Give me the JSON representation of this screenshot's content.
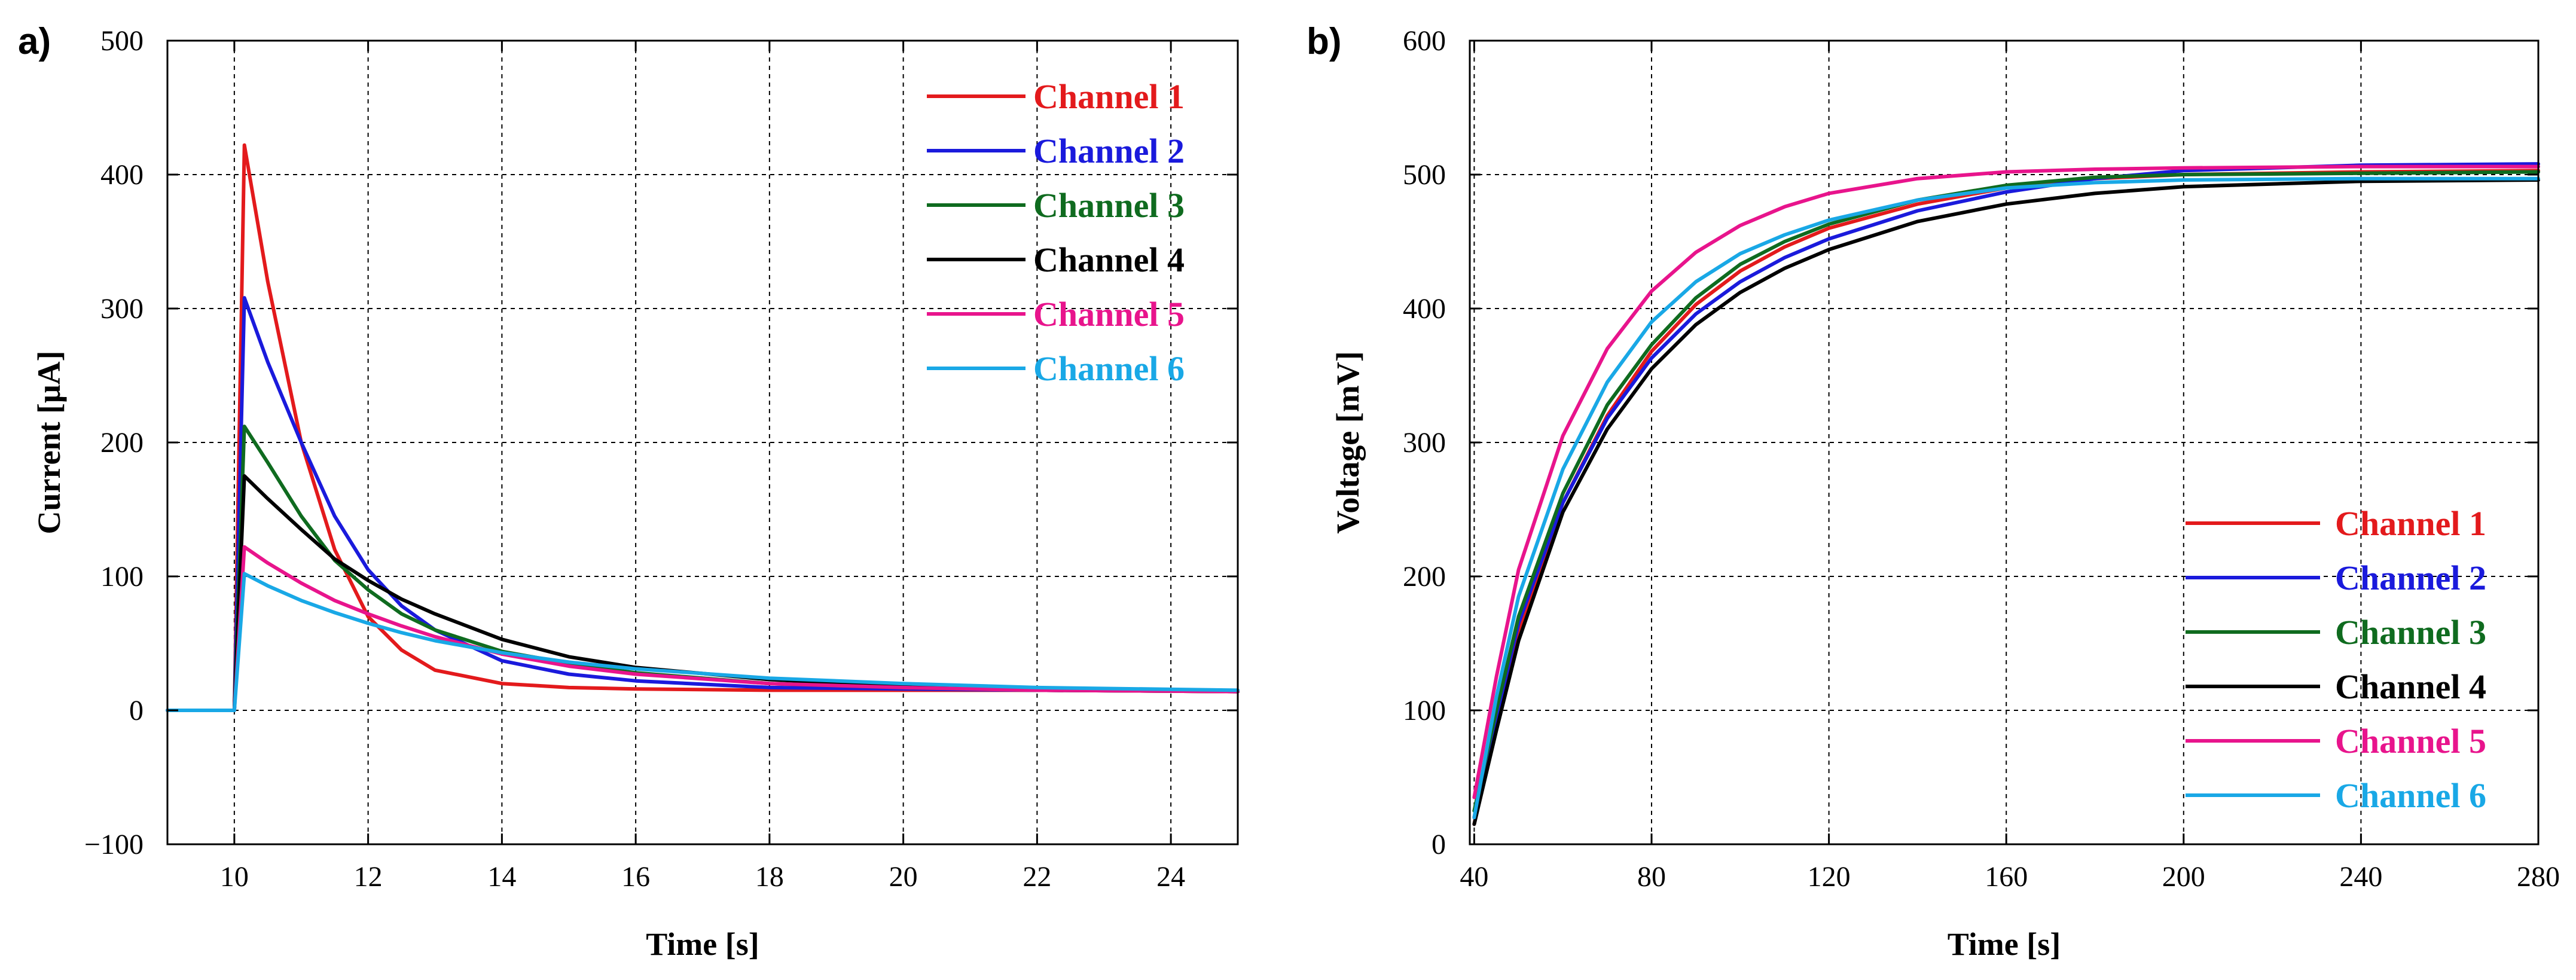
{
  "chart_data": [
    {
      "type": "line",
      "panel_label": "a)",
      "xlabel": "Time [s]",
      "ylabel": "Current [μA]",
      "xlim": [
        9,
        25
      ],
      "ylim": [
        -100,
        500
      ],
      "xticks": [
        10,
        12,
        14,
        16,
        18,
        20,
        22,
        24
      ],
      "yticks": [
        -100,
        0,
        100,
        200,
        300,
        400,
        500
      ],
      "xtick_labels": [
        "10",
        "12",
        "14",
        "16",
        "18",
        "20",
        "22",
        "24"
      ],
      "ytick_labels": [
        "−100",
        "0",
        "100",
        "200",
        "300",
        "400",
        "500"
      ],
      "legend_position": "top-right",
      "grid": true,
      "series": [
        {
          "name": "Channel 1",
          "color": "#e31a1c",
          "x": [
            9,
            10,
            10.15,
            10.5,
            11,
            11.5,
            12,
            12.5,
            13,
            14,
            15,
            16,
            18,
            20,
            22,
            25
          ],
          "y": [
            0,
            0,
            422,
            320,
            200,
            120,
            70,
            45,
            30,
            20,
            17,
            16,
            15,
            15,
            15,
            14
          ]
        },
        {
          "name": "Channel 2",
          "color": "#1a1adc",
          "x": [
            9,
            10,
            10.15,
            10.5,
            11,
            11.5,
            12,
            12.5,
            13,
            14,
            15,
            16,
            18,
            20,
            22,
            25
          ],
          "y": [
            0,
            0,
            308,
            260,
            200,
            145,
            105,
            78,
            60,
            37,
            27,
            22,
            17,
            16,
            15,
            14
          ]
        },
        {
          "name": "Channel 3",
          "color": "#0f6b1f",
          "x": [
            9,
            10,
            10.15,
            10.5,
            11,
            11.5,
            12,
            12.5,
            13,
            14,
            15,
            16,
            18,
            20,
            22,
            25
          ],
          "y": [
            0,
            0,
            212,
            185,
            145,
            112,
            90,
            72,
            60,
            44,
            35,
            28,
            20,
            17,
            15,
            14
          ]
        },
        {
          "name": "Channel 4",
          "color": "#000000",
          "x": [
            9,
            10,
            10.15,
            10.5,
            11,
            11.5,
            12,
            12.5,
            13,
            14,
            15,
            16,
            18,
            20,
            22,
            25
          ],
          "y": [
            0,
            0,
            175,
            158,
            135,
            113,
            97,
            83,
            72,
            53,
            40,
            32,
            23,
            18,
            16,
            14
          ]
        },
        {
          "name": "Channel 5",
          "color": "#e8148c",
          "x": [
            9,
            10,
            10.15,
            10.5,
            11,
            11.5,
            12,
            12.5,
            13,
            14,
            15,
            16,
            18,
            20,
            22,
            25
          ],
          "y": [
            0,
            0,
            122,
            110,
            95,
            82,
            72,
            63,
            55,
            42,
            33,
            27,
            20,
            17,
            15,
            14
          ]
        },
        {
          "name": "Channel 6",
          "color": "#19a8e6",
          "x": [
            9,
            10,
            10.15,
            10.5,
            11,
            11.5,
            12,
            12.5,
            13,
            14,
            15,
            16,
            18,
            20,
            22,
            25
          ],
          "y": [
            0,
            0,
            102,
            93,
            82,
            73,
            65,
            58,
            52,
            43,
            36,
            31,
            24,
            20,
            17,
            15
          ]
        }
      ]
    },
    {
      "type": "line",
      "panel_label": "b)",
      "xlabel": "Time [s]",
      "ylabel": "Voltage [mV]",
      "xlim": [
        39,
        280
      ],
      "ylim": [
        0,
        600
      ],
      "xticks": [
        40,
        80,
        120,
        160,
        200,
        240,
        280
      ],
      "yticks": [
        0,
        100,
        200,
        300,
        400,
        500,
        600
      ],
      "xtick_labels": [
        "40",
        "80",
        "120",
        "160",
        "200",
        "240",
        "280"
      ],
      "ytick_labels": [
        "0",
        "100",
        "200",
        "300",
        "400",
        "500",
        "600"
      ],
      "legend_position": "bottom-right",
      "grid": true,
      "series": [
        {
          "name": "Channel 1",
          "color": "#e31a1c",
          "x": [
            40,
            45,
            50,
            60,
            70,
            80,
            90,
            100,
            110,
            120,
            140,
            160,
            180,
            200,
            240,
            280
          ],
          "y": [
            15,
            90,
            160,
            255,
            320,
            368,
            403,
            428,
            446,
            460,
            478,
            490,
            497,
            500,
            502,
            503
          ]
        },
        {
          "name": "Channel 2",
          "color": "#1a1adc",
          "x": [
            40,
            45,
            50,
            60,
            70,
            80,
            90,
            100,
            110,
            120,
            140,
            160,
            180,
            200,
            240,
            280
          ],
          "y": [
            20,
            95,
            165,
            255,
            318,
            363,
            396,
            420,
            438,
            452,
            473,
            487,
            497,
            503,
            507,
            508
          ]
        },
        {
          "name": "Channel 3",
          "color": "#0f6b1f",
          "x": [
            40,
            45,
            50,
            60,
            70,
            80,
            90,
            100,
            110,
            120,
            140,
            160,
            180,
            200,
            240,
            280
          ],
          "y": [
            25,
            100,
            170,
            262,
            328,
            373,
            408,
            433,
            450,
            463,
            481,
            492,
            498,
            500,
            501,
            502
          ]
        },
        {
          "name": "Channel 4",
          "color": "#000000",
          "x": [
            40,
            45,
            50,
            60,
            70,
            80,
            90,
            100,
            110,
            120,
            140,
            160,
            180,
            200,
            240,
            280
          ],
          "y": [
            15,
            85,
            152,
            248,
            310,
            355,
            388,
            412,
            430,
            444,
            465,
            478,
            486,
            491,
            495,
            496
          ]
        },
        {
          "name": "Channel 5",
          "color": "#e8148c",
          "x": [
            40,
            45,
            50,
            60,
            70,
            80,
            90,
            100,
            110,
            120,
            140,
            160,
            180,
            200,
            240,
            280
          ],
          "y": [
            35,
            125,
            205,
            305,
            370,
            413,
            442,
            462,
            476,
            486,
            497,
            502,
            504,
            505,
            506,
            506
          ]
        },
        {
          "name": "Channel 6",
          "color": "#19a8e6",
          "x": [
            40,
            45,
            50,
            60,
            70,
            80,
            90,
            100,
            110,
            120,
            140,
            160,
            180,
            200,
            240,
            280
          ],
          "y": [
            20,
            110,
            185,
            280,
            345,
            390,
            420,
            441,
            455,
            466,
            481,
            490,
            494,
            496,
            497,
            497
          ]
        }
      ]
    }
  ]
}
